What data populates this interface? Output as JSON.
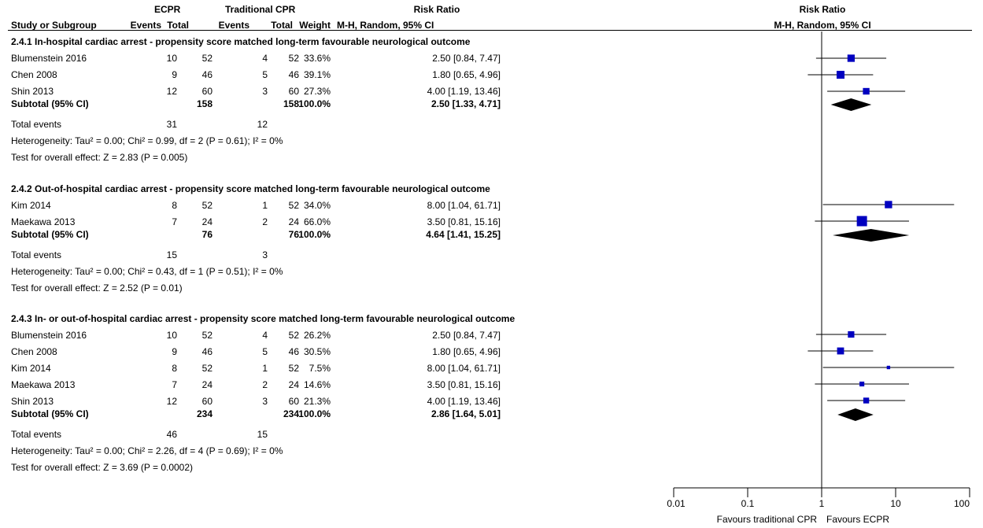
{
  "header": {
    "ecpr": "ECPR",
    "trad": "Traditional CPR",
    "rr_table": "Risk Ratio",
    "study": "Study or Subgroup",
    "events1": "Events",
    "total1": "Total",
    "events2": "Events",
    "total2": "Total",
    "weight": "Weight",
    "method": "M-H, Random, 95% CI",
    "rr_plot": "Risk Ratio",
    "method_plot": "M-H, Random, 95% CI"
  },
  "groups": [
    {
      "title": "2.4.1 In-hospital cardiac arrest - propensity score matched long-term favourable neurological outcome",
      "studies": [
        {
          "name": "Blumenstein 2016",
          "e1": "10",
          "t1": "52",
          "e2": "4",
          "t2": "52",
          "weight": "33.6%",
          "ci": "2.50 [0.84, 7.47]"
        },
        {
          "name": "Chen 2008",
          "e1": "9",
          "t1": "46",
          "e2": "5",
          "t2": "46",
          "weight": "39.1%",
          "ci": "1.80 [0.65, 4.96]"
        },
        {
          "name": "Shin 2013",
          "e1": "12",
          "t1": "60",
          "e2": "3",
          "t2": "60",
          "weight": "27.3%",
          "ci": "4.00 [1.19, 13.46]"
        }
      ],
      "subtotal": {
        "label": "Subtotal (95% CI)",
        "t1": "158",
        "t2": "158",
        "weight": "100.0%",
        "ci": "2.50 [1.33, 4.71]"
      },
      "events": {
        "label": "Total events",
        "e1": "31",
        "e2": "12"
      },
      "heterogeneity": "Heterogeneity: Tau² = 0.00; Chi² = 0.99, df = 2 (P = 0.61); I² = 0%",
      "overall": "Test for overall effect: Z = 2.83 (P = 0.005)"
    },
    {
      "title": "2.4.2 Out-of-hospital cardiac arrest - propensity score matched long-term favourable neurological outcome",
      "studies": [
        {
          "name": "Kim 2014",
          "e1": "8",
          "t1": "52",
          "e2": "1",
          "t2": "52",
          "weight": "34.0%",
          "ci": "8.00 [1.04, 61.71]"
        },
        {
          "name": "Maekawa 2013",
          "e1": "7",
          "t1": "24",
          "e2": "2",
          "t2": "24",
          "weight": "66.0%",
          "ci": "3.50 [0.81, 15.16]"
        }
      ],
      "subtotal": {
        "label": "Subtotal (95% CI)",
        "t1": "76",
        "t2": "76",
        "weight": "100.0%",
        "ci": "4.64 [1.41, 15.25]"
      },
      "events": {
        "label": "Total events",
        "e1": "15",
        "e2": "3"
      },
      "heterogeneity": "Heterogeneity: Tau² = 0.00; Chi² = 0.43, df = 1 (P = 0.51); I² = 0%",
      "overall": "Test for overall effect: Z = 2.52 (P = 0.01)"
    },
    {
      "title": "2.4.3 In- or out-of-hospital cardiac arrest - propensity score matched long-term favourable neurological outcome",
      "studies": [
        {
          "name": "Blumenstein 2016",
          "e1": "10",
          "t1": "52",
          "e2": "4",
          "t2": "52",
          "weight": "26.2%",
          "ci": "2.50 [0.84, 7.47]"
        },
        {
          "name": "Chen 2008",
          "e1": "9",
          "t1": "46",
          "e2": "5",
          "t2": "46",
          "weight": "30.5%",
          "ci": "1.80 [0.65, 4.96]"
        },
        {
          "name": "Kim 2014",
          "e1": "8",
          "t1": "52",
          "e2": "1",
          "t2": "52",
          "weight": "7.5%",
          "ci": "8.00 [1.04, 61.71]"
        },
        {
          "name": "Maekawa 2013",
          "e1": "7",
          "t1": "24",
          "e2": "2",
          "t2": "24",
          "weight": "14.6%",
          "ci": "3.50 [0.81, 15.16]"
        },
        {
          "name": "Shin 2013",
          "e1": "12",
          "t1": "60",
          "e2": "3",
          "t2": "60",
          "weight": "21.3%",
          "ci": "4.00 [1.19, 13.46]"
        }
      ],
      "subtotal": {
        "label": "Subtotal (95% CI)",
        "t1": "234",
        "t2": "234",
        "weight": "100.0%",
        "ci": "2.86 [1.64, 5.01]"
      },
      "events": {
        "label": "Total events",
        "e1": "46",
        "e2": "15"
      },
      "heterogeneity": "Heterogeneity: Tau² = 0.00; Chi² = 2.26, df = 4 (P = 0.69); I² = 0%",
      "overall": "Test for overall effect: Z = 3.69 (P = 0.0002)"
    }
  ],
  "axis": {
    "ticks": [
      "0.01",
      "0.1",
      "1",
      "10",
      "100"
    ],
    "favours_left": "Favours traditional CPR",
    "favours_right": "Favours ECPR"
  },
  "colors": {
    "marker": "#0000c0",
    "diamond": "#000000"
  },
  "chart_data": {
    "type": "forest",
    "x_scale": "log",
    "xlim": [
      0.01,
      100
    ],
    "reference_line": 1,
    "groups": [
      {
        "studies": [
          {
            "name": "Blumenstein 2016",
            "rr": 2.5,
            "lo": 0.84,
            "hi": 7.47,
            "weight": 33.6
          },
          {
            "name": "Chen 2008",
            "rr": 1.8,
            "lo": 0.65,
            "hi": 4.96,
            "weight": 39.1
          },
          {
            "name": "Shin 2013",
            "rr": 4.0,
            "lo": 1.19,
            "hi": 13.46,
            "weight": 27.3
          }
        ],
        "subtotal": {
          "rr": 2.5,
          "lo": 1.33,
          "hi": 4.71
        }
      },
      {
        "studies": [
          {
            "name": "Kim 2014",
            "rr": 8.0,
            "lo": 1.04,
            "hi": 61.71,
            "weight": 34.0
          },
          {
            "name": "Maekawa 2013",
            "rr": 3.5,
            "lo": 0.81,
            "hi": 15.16,
            "weight": 66.0
          }
        ],
        "subtotal": {
          "rr": 4.64,
          "lo": 1.41,
          "hi": 15.25
        }
      },
      {
        "studies": [
          {
            "name": "Blumenstein 2016",
            "rr": 2.5,
            "lo": 0.84,
            "hi": 7.47,
            "weight": 26.2
          },
          {
            "name": "Chen 2008",
            "rr": 1.8,
            "lo": 0.65,
            "hi": 4.96,
            "weight": 30.5
          },
          {
            "name": "Kim 2014",
            "rr": 8.0,
            "lo": 1.04,
            "hi": 61.71,
            "weight": 7.5
          },
          {
            "name": "Maekawa 2013",
            "rr": 3.5,
            "lo": 0.81,
            "hi": 15.16,
            "weight": 14.6
          },
          {
            "name": "Shin 2013",
            "rr": 4.0,
            "lo": 1.19,
            "hi": 13.46,
            "weight": 21.3
          }
        ],
        "subtotal": {
          "rr": 2.86,
          "lo": 1.64,
          "hi": 5.01
        }
      }
    ]
  }
}
